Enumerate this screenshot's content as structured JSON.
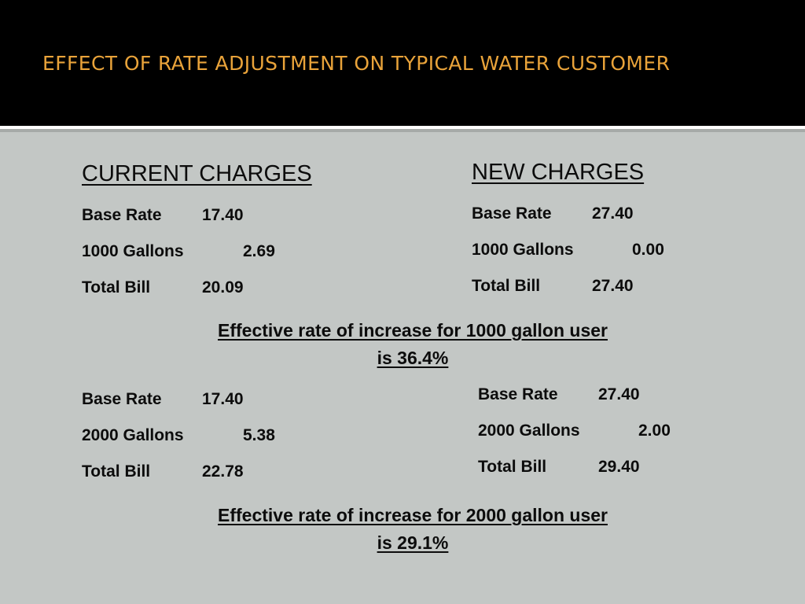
{
  "slide": {
    "title": "EFFECT OF RATE ADJUSTMENT ON TYPICAL WATER CUSTOMER",
    "title_color": "#e9a33a",
    "background": "#c3c7c5"
  },
  "section1": {
    "current": {
      "heading": "CURRENT CHARGES",
      "rows": [
        {
          "label": "Base Rate",
          "value": "17.40"
        },
        {
          "label": "1000 Gallons",
          "value": "2.69"
        },
        {
          "label": "Total Bill",
          "value": "20.09"
        }
      ]
    },
    "new": {
      "heading": "NEW CHARGES",
      "rows": [
        {
          "label": "Base Rate",
          "value": "27.40"
        },
        {
          "label": "1000 Gallons",
          "value": "0.00"
        },
        {
          "label": "Total Bill",
          "value": "27.40"
        }
      ]
    },
    "note_line1": "Effective rate of increase for 1000 gallon user",
    "note_line2": "is 36.4%"
  },
  "section2": {
    "current": {
      "rows": [
        {
          "label": "Base Rate",
          "value": "17.40"
        },
        {
          "label": "2000 Gallons",
          "value": "5.38"
        },
        {
          "label": "Total Bill",
          "value": "22.78"
        }
      ]
    },
    "new": {
      "rows": [
        {
          "label": "Base Rate",
          "value": "27.40"
        },
        {
          "label": "2000 Gallons",
          "value": "2.00"
        },
        {
          "label": "Total Bill",
          "value": "29.40"
        }
      ]
    },
    "note_line1": "Effective rate of increase for 2000 gallon user",
    "note_line2": "is 29.1%"
  }
}
